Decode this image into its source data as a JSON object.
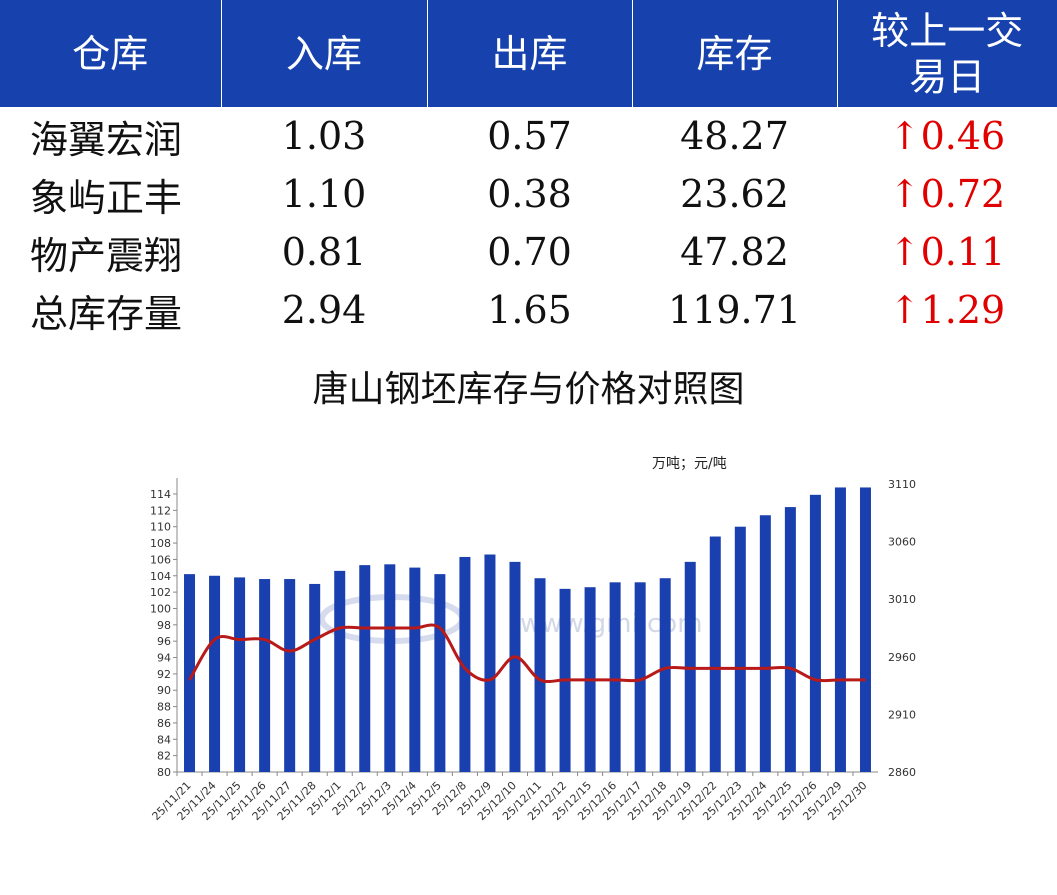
{
  "table": {
    "headers": [
      "仓库",
      "入库",
      "出库",
      "库存",
      "较上一交易日"
    ],
    "rows": [
      {
        "name": "海翼宏润",
        "in": "1.03",
        "out": "0.57",
        "stock": "48.27",
        "arrow": "↑",
        "change": "0.46"
      },
      {
        "name": "象屿正丰",
        "in": "1.10",
        "out": "0.38",
        "stock": "23.62",
        "arrow": "↑",
        "change": "0.72"
      },
      {
        "name": "物产震翔",
        "in": "0.81",
        "out": "0.70",
        "stock": "47.82",
        "arrow": "↑",
        "change": "0.11"
      },
      {
        "name": "总库存量",
        "in": "2.94",
        "out": "1.65",
        "stock": "119.71",
        "arrow": "↑",
        "change": "1.29"
      }
    ]
  },
  "watermark": "www.gmi.com",
  "chart_data": {
    "type": "bar+line",
    "title": "唐山钢坯库存与价格对照图",
    "unit_label": "万吨；元/吨",
    "categories": [
      "25/11/21",
      "25/11/24",
      "25/11/25",
      "25/11/26",
      "25/11/27",
      "25/11/28",
      "25/12/1",
      "25/12/2",
      "25/12/3",
      "25/12/4",
      "25/12/5",
      "25/12/8",
      "25/12/9",
      "25/12/10",
      "25/12/11",
      "25/12/12",
      "25/12/15",
      "25/12/16",
      "25/12/17",
      "25/12/18",
      "25/12/19",
      "25/12/22",
      "25/12/23",
      "25/12/24",
      "25/12/25",
      "25/12/26",
      "25/12/29",
      "25/12/30"
    ],
    "bar_series": {
      "axis": "left",
      "color": "#1a3fae",
      "values": [
        104.2,
        104.0,
        103.8,
        103.6,
        103.6,
        103.0,
        104.6,
        105.3,
        105.4,
        105.0,
        104.2,
        106.3,
        106.6,
        105.7,
        103.7,
        102.4,
        102.6,
        103.2,
        103.2,
        103.7,
        105.7,
        108.8,
        110.0,
        111.4,
        112.4,
        113.9,
        114.8,
        114.8
      ]
    },
    "line_series": {
      "axis": "right",
      "color": "#b81a1a",
      "values": [
        2940,
        2975,
        2975,
        2975,
        2965,
        2975,
        2985,
        2985,
        2985,
        2985,
        2985,
        2950,
        2940,
        2960,
        2940,
        2940,
        2940,
        2940,
        2940,
        2950,
        2950,
        2950,
        2950,
        2950,
        2950,
        2940,
        2940,
        2940
      ]
    },
    "left_axis": {
      "min": 80,
      "max": 114,
      "step": 2
    },
    "right_axis": {
      "min": 2860,
      "max": 3110,
      "ticks": [
        2860,
        2910,
        2960,
        3010,
        3060,
        3110
      ]
    },
    "grid": false
  }
}
